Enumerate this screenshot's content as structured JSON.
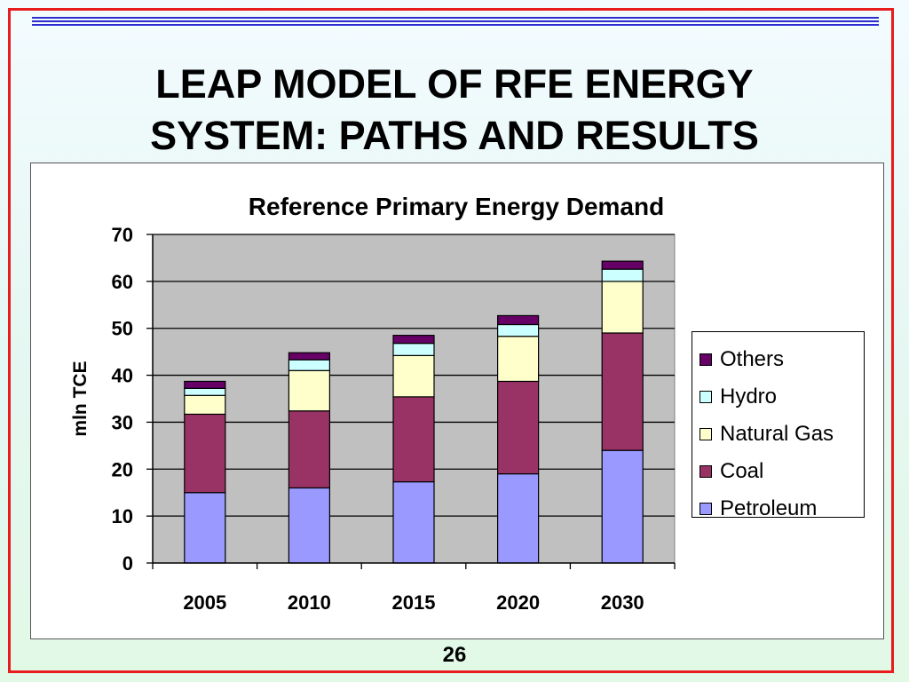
{
  "slide": {
    "title_line1": "LEAP MODEL OF RFE ENERGY",
    "title_line2": "SYSTEM: PATHS AND RESULTS",
    "page_number": "26",
    "frame_color": "#e81c1c",
    "rule_color": "#2d2dcf"
  },
  "chart_data": {
    "type": "bar",
    "stacked": true,
    "title": "Reference Primary Energy Demand",
    "xlabel": "",
    "ylabel": "mln TCE",
    "categories": [
      "2005",
      "2010",
      "2015",
      "2020",
      "2030"
    ],
    "ylim": [
      0,
      70
    ],
    "yticks": [
      0,
      10,
      20,
      30,
      40,
      50,
      60,
      70
    ],
    "grid": true,
    "plot_background": "#c0c0c0",
    "legend_position": "right",
    "series": [
      {
        "name": "Petroleum",
        "color": "#9999ff",
        "values": [
          15,
          16,
          17.3,
          19,
          24
        ]
      },
      {
        "name": "Coal",
        "color": "#993366",
        "values": [
          16.7,
          16.4,
          18.1,
          19.7,
          25
        ]
      },
      {
        "name": "Natural Gas",
        "color": "#ffffcc",
        "values": [
          4,
          8.6,
          8.8,
          9.6,
          11
        ]
      },
      {
        "name": "Hydro",
        "color": "#ccffff",
        "values": [
          1.5,
          2.3,
          2.6,
          2.5,
          2.6
        ]
      },
      {
        "name": "Others",
        "color": "#660066",
        "values": [
          1.5,
          1.5,
          1.7,
          1.9,
          1.7
        ]
      }
    ]
  }
}
